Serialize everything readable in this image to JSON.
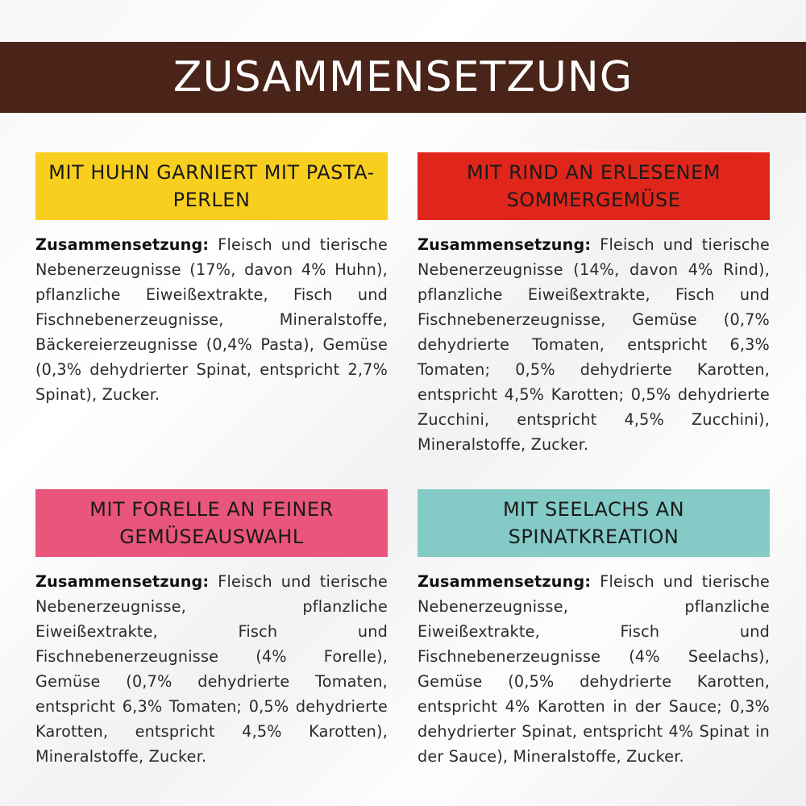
{
  "header": {
    "title": "ZUSAMMENSETZUNG",
    "color": "#4a2418"
  },
  "cards": [
    {
      "title": "MIT HUHN GARNIERT MIT PASTA-PERLEN",
      "color": "#f9cf1f",
      "label": "Zusammensetzung:",
      "text": "Fleisch und tierische Nebenerzeugnisse (17%, davon 4% Huhn), pflanzliche Eiweißextrakte, Fisch und Fischnebenerzeugnisse, Mineralstoffe, Bäckereierzeugnisse (0,4% Pasta), Gemüse (0,3% dehydrierter Spinat, entspricht 2,7% Spinat), Zucker."
    },
    {
      "title": "MIT RIND AN ERLESENEM SOMMERGEMÜSE",
      "color": "#e0261b",
      "label": "Zusammensetzung:",
      "text": "Fleisch und tierische Nebenerzeugnisse (14%, davon 4% Rind), pflanzliche Eiweißextrakte, Fisch und Fischnebenerzeugnisse, Gemüse (0,7% dehydrierte Tomaten, entspricht 6,3% Tomaten; 0,5% dehydrierte Karotten, entspricht 4,5% Karotten; 0,5% dehydrierte Zucchini, entspricht 4,5% Zucchini), Mineralstoffe, Zucker."
    },
    {
      "title": "MIT FORELLE AN FEINER GEMÜSEAUSWAHL",
      "color": "#e9557b",
      "label": "Zusammensetzung:",
      "text": "Fleisch und tierische Nebenerzeugnisse, pflanzliche Eiweißextrakte, Fisch und Fischnebenerzeugnisse (4% Forelle), Gemüse (0,7% dehydrierte Tomaten, entspricht 6,3% Tomaten; 0,5% dehydrierte Karotten, entspricht 4,5% Karotten), Mineralstoffe, Zucker."
    },
    {
      "title": "MIT SEELACHS AN SPINATKREATION",
      "color": "#84cbc7",
      "label": "Zusammensetzung:",
      "text": "Fleisch und tierische Nebenerzeugnisse, pflanzliche Eiweißextrakte, Fisch und Fischnebenerzeugnisse (4% Seelachs), Gemüse (0,5% dehydrierte Karotten, entspricht 4% Karotten in der Sauce; 0,3% dehydrierter Spinat, entspricht 4% Spinat in der Sauce), Mineralstoffe, Zucker."
    }
  ]
}
